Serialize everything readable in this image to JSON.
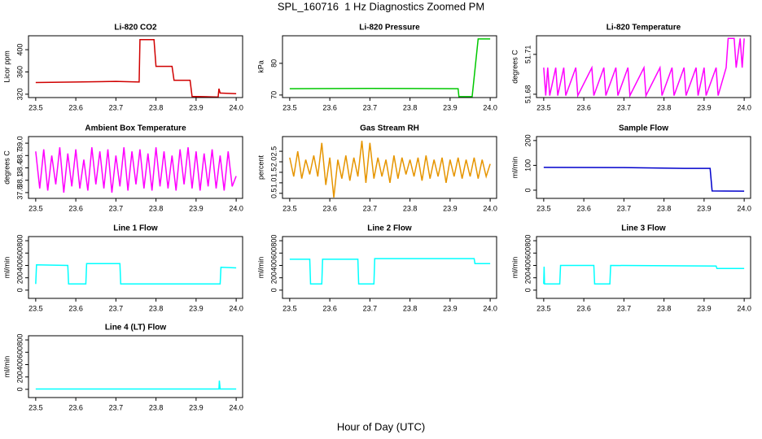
{
  "title": "SPL_160716  1 Hz Diagnostics Zoomed PM",
  "xlabel": "Hour of Day (UTC)",
  "chart_data": [
    {
      "type": "line",
      "title": "Li-820 CO2",
      "ylabel": "Licor ppm",
      "color": "#d00000",
      "x": [
        23.5,
        23.6,
        23.7,
        23.758,
        23.76,
        23.795,
        23.8,
        23.84,
        23.845,
        23.885,
        23.89,
        23.955,
        23.957,
        23.96,
        23.962,
        24.0
      ],
      "values": [
        341,
        342,
        343,
        342,
        418,
        418,
        370,
        370,
        345,
        345,
        316,
        315,
        330,
        322,
        322,
        321
      ],
      "xlim": [
        23.482,
        24.016
      ],
      "xticks": [
        23.5,
        23.6,
        23.7,
        23.8,
        23.9,
        {
          "value": 24,
          "label": "24.0"
        }
      ],
      "ylim": [
        314,
        425
      ],
      "yticks": [
        320,
        360,
        400
      ]
    },
    {
      "type": "line",
      "title": "Li-820 Pressure",
      "ylabel": "kPa",
      "color": "#00c800",
      "x": [
        23.5,
        23.7,
        23.92,
        23.922,
        23.955,
        23.97,
        24.0
      ],
      "values": [
        72,
        72.1,
        72,
        69.5,
        69.5,
        87.7,
        87.7
      ],
      "xlim": [
        23.482,
        24.016
      ],
      "xticks": [
        23.5,
        23.6,
        23.7,
        23.8,
        23.9,
        {
          "value": 24,
          "label": "24.0"
        }
      ],
      "ylim": [
        69.2,
        88.7
      ],
      "yticks": [
        70,
        80
      ]
    },
    {
      "type": "line",
      "title": "Li-820 Temperature",
      "ylabel": "degrees C",
      "color": "#ff00ff",
      "x": [
        23.5,
        23.505,
        23.51,
        23.515,
        23.53,
        23.535,
        23.55,
        23.555,
        23.58,
        23.585,
        23.62,
        23.625,
        23.65,
        23.655,
        23.68,
        23.685,
        23.71,
        23.715,
        23.75,
        23.755,
        23.79,
        23.795,
        23.82,
        23.825,
        23.85,
        23.855,
        23.88,
        23.885,
        23.9,
        23.905,
        23.93,
        23.935,
        23.955,
        23.96,
        23.975,
        23.98,
        23.99,
        23.995,
        24.0
      ],
      "values": [
        51.7,
        51.679,
        51.7,
        51.679,
        51.7,
        51.679,
        51.7,
        51.679,
        51.7,
        51.679,
        51.7,
        51.679,
        51.7,
        51.679,
        51.7,
        51.679,
        51.7,
        51.679,
        51.7,
        51.679,
        51.7,
        51.679,
        51.7,
        51.679,
        51.7,
        51.679,
        51.7,
        51.679,
        51.7,
        51.679,
        51.7,
        51.679,
        51.7,
        51.722,
        51.722,
        51.7,
        51.722,
        51.7,
        51.722
      ],
      "xlim": [
        23.482,
        24.016
      ],
      "xticks": [
        23.5,
        23.6,
        23.7,
        23.8,
        23.9,
        {
          "value": 24,
          "label": "24.0"
        }
      ],
      "ylim": [
        51.6775,
        51.724
      ],
      "yticks": [
        51.68,
        51.71
      ]
    },
    {
      "type": "line",
      "title": "Ambient Box Temperature",
      "ylabel": "degrees C",
      "color": "#ff00ff",
      "x": [
        23.5,
        23.51,
        23.52,
        23.53,
        23.54,
        23.55,
        23.56,
        23.57,
        23.58,
        23.59,
        23.6,
        23.61,
        23.62,
        23.63,
        23.64,
        23.65,
        23.66,
        23.67,
        23.68,
        23.69,
        23.7,
        23.71,
        23.72,
        23.73,
        23.74,
        23.75,
        23.76,
        23.77,
        23.78,
        23.79,
        23.8,
        23.81,
        23.82,
        23.83,
        23.84,
        23.85,
        23.86,
        23.87,
        23.88,
        23.89,
        23.9,
        23.91,
        23.92,
        23.93,
        23.94,
        23.95,
        23.96,
        23.97,
        23.98,
        23.99,
        24.0
      ],
      "values": [
        38.8,
        37.9,
        38.85,
        37.85,
        38.7,
        38.0,
        38.9,
        37.8,
        38.75,
        37.95,
        38.85,
        37.9,
        38.6,
        37.85,
        38.9,
        38.0,
        38.8,
        37.9,
        38.85,
        37.8,
        38.7,
        37.95,
        38.9,
        37.85,
        38.8,
        38.0,
        38.85,
        37.9,
        38.75,
        37.85,
        38.9,
        37.95,
        38.8,
        37.9,
        38.7,
        37.85,
        38.85,
        38.0,
        38.9,
        37.9,
        38.8,
        37.85,
        38.75,
        37.95,
        38.85,
        37.9,
        38.7,
        37.85,
        38.8,
        37.95,
        38.2
      ],
      "xlim": [
        23.482,
        24.016
      ],
      "xticks": [
        23.5,
        23.6,
        23.7,
        23.8,
        23.9,
        {
          "value": 24,
          "label": "24.0"
        }
      ],
      "ylim": [
        37.66,
        39.16
      ],
      "yticks": [
        37.8,
        38.1,
        38.4,
        38.7,
        {
          "value": 39,
          "label": "39.0"
        }
      ]
    },
    {
      "type": "line",
      "title": "Gas Stream RH",
      "ylabel": "percent",
      "color": "#e69500",
      "x": [
        23.5,
        23.51,
        23.52,
        23.53,
        23.54,
        23.55,
        23.56,
        23.57,
        23.58,
        23.59,
        23.6,
        23.61,
        23.62,
        23.63,
        23.64,
        23.65,
        23.66,
        23.67,
        23.68,
        23.69,
        23.7,
        23.71,
        23.72,
        23.73,
        23.74,
        23.75,
        23.76,
        23.77,
        23.78,
        23.79,
        23.8,
        23.81,
        23.82,
        23.83,
        23.84,
        23.85,
        23.86,
        23.87,
        23.88,
        23.89,
        23.9,
        23.91,
        23.92,
        23.93,
        23.94,
        23.95,
        23.96,
        23.97,
        23.98,
        23.99,
        24.0
      ],
      "values": [
        2.2,
        1.3,
        2.5,
        1.2,
        2.1,
        1.4,
        2.3,
        1.3,
        2.9,
        0.9,
        2.2,
        0.3,
        2.1,
        1.2,
        2.3,
        1.1,
        2.2,
        1.3,
        3.0,
        1.0,
        2.9,
        1.2,
        2.2,
        1.3,
        2.1,
        1.0,
        2.3,
        1.2,
        2.2,
        1.4,
        2.1,
        1.3,
        2.2,
        1.1,
        2.3,
        1.2,
        2.1,
        1.3,
        2.2,
        1.0,
        2.1,
        1.3,
        2.2,
        1.2,
        2.1,
        1.3,
        2.2,
        1.2,
        2.1,
        1.3,
        1.9
      ],
      "xlim": [
        23.482,
        24.016
      ],
      "xticks": [
        23.5,
        23.6,
        23.7,
        23.8,
        23.9,
        {
          "value": 24,
          "label": "24.0"
        }
      ],
      "ylim": [
        0.26,
        3.2
      ],
      "yticks": [
        0.5,
        {
          "value": 1,
          "label": "1.0"
        },
        1.5,
        {
          "value": 2,
          "label": "2.0"
        },
        2.5
      ]
    },
    {
      "type": "line",
      "title": "Sample Flow",
      "ylabel": "ml/min",
      "color": "#0000cc",
      "x": [
        23.5,
        23.7,
        23.85,
        23.915,
        23.92,
        24.0
      ],
      "values": [
        92,
        91,
        88,
        88,
        -3,
        -4
      ],
      "xlim": [
        23.482,
        24.016
      ],
      "xticks": [
        23.5,
        23.6,
        23.7,
        23.8,
        23.9,
        {
          "value": 24,
          "label": "24.0"
        }
      ],
      "ylim": [
        -33,
        216
      ],
      "yticks": [
        0,
        100,
        200
      ]
    },
    {
      "type": "line",
      "title": "Line 1 Flow",
      "ylabel": "ml/min",
      "color": "#00ffff",
      "x": [
        23.5,
        23.502,
        23.58,
        23.582,
        23.625,
        23.627,
        23.71,
        23.712,
        23.96,
        23.962,
        24.0
      ],
      "values": [
        100,
        410,
        400,
        100,
        100,
        430,
        430,
        100,
        100,
        370,
        360
      ],
      "xlim": [
        23.482,
        24.016
      ],
      "xticks": [
        23.5,
        23.6,
        23.7,
        23.8,
        23.9,
        {
          "value": 24,
          "label": "24.0"
        }
      ],
      "ylim": [
        -133,
        867
      ],
      "yticks": [
        0,
        200,
        400,
        600,
        800
      ]
    },
    {
      "type": "line",
      "title": "Line 2 Flow",
      "ylabel": "ml/min",
      "color": "#00ffff",
      "x": [
        23.5,
        23.55,
        23.552,
        23.58,
        23.582,
        23.67,
        23.672,
        23.71,
        23.712,
        23.96,
        23.962,
        24.0
      ],
      "values": [
        500,
        500,
        100,
        100,
        500,
        500,
        100,
        100,
        510,
        510,
        430,
        430
      ],
      "xlim": [
        23.482,
        24.016
      ],
      "xticks": [
        23.5,
        23.6,
        23.7,
        23.8,
        23.9,
        {
          "value": 24,
          "label": "24.0"
        }
      ],
      "ylim": [
        -133,
        867
      ],
      "yticks": [
        0,
        200,
        400,
        600,
        800
      ]
    },
    {
      "type": "line",
      "title": "Line 3 Flow",
      "ylabel": "ml/min",
      "color": "#00ffff",
      "x": [
        23.5,
        23.501,
        23.502,
        23.54,
        23.542,
        23.625,
        23.627,
        23.665,
        23.667,
        23.93,
        23.932,
        24.0
      ],
      "values": [
        100,
        380,
        100,
        100,
        400,
        400,
        100,
        100,
        400,
        390,
        350,
        350
      ],
      "xlim": [
        23.482,
        24.016
      ],
      "xticks": [
        23.5,
        23.6,
        23.7,
        23.8,
        23.9,
        {
          "value": 24,
          "label": "24.0"
        }
      ],
      "ylim": [
        -133,
        867
      ],
      "yticks": [
        0,
        200,
        400,
        600,
        800
      ]
    },
    {
      "type": "line",
      "title": "Line 4 (LT) Flow",
      "ylabel": "ml/min",
      "color": "#00ffff",
      "x": [
        23.5,
        23.957,
        23.958,
        23.96,
        24.0
      ],
      "values": [
        5,
        5,
        140,
        5,
        5
      ],
      "xlim": [
        23.482,
        24.016
      ],
      "xticks": [
        23.5,
        23.6,
        23.7,
        23.8,
        23.9,
        {
          "value": 24,
          "label": "24.0"
        }
      ],
      "ylim": [
        -133,
        867
      ],
      "yticks": [
        0,
        200,
        400,
        600,
        800
      ]
    }
  ]
}
